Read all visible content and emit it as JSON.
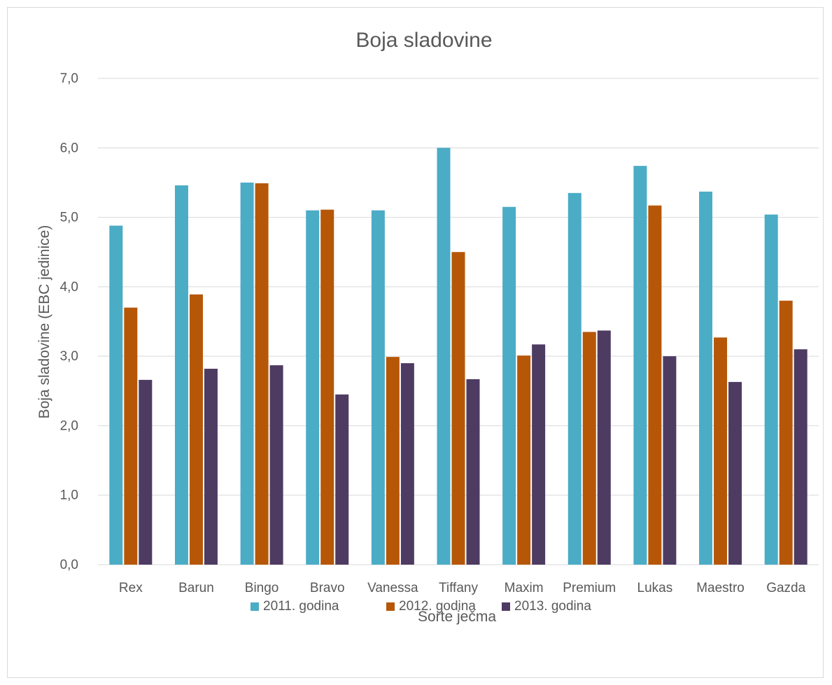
{
  "chart_data": {
    "type": "bar",
    "title": "Boja sladovine",
    "xlabel": "Sorte ječma",
    "ylabel": "Boja sladovine (EBC jedinice)",
    "ylim": [
      0,
      7
    ],
    "yticks": [
      "0,0",
      "1,0",
      "2,0",
      "3,0",
      "4,0",
      "5,0",
      "6,0",
      "7,0"
    ],
    "categories": [
      "Rex",
      "Barun",
      "Bingo",
      "Bravo",
      "Vanessa",
      "Tiffany",
      "Maxim",
      "Premium",
      "Lukas",
      "Maestro",
      "Gazda"
    ],
    "series": [
      {
        "name": "2011. godina",
        "color": "#4bacc6",
        "values": [
          4.88,
          5.46,
          5.5,
          5.1,
          5.1,
          6.0,
          5.15,
          5.35,
          5.74,
          5.37,
          5.04
        ]
      },
      {
        "name": "2012. godina",
        "color": "#b65708",
        "values": [
          3.7,
          3.89,
          5.49,
          5.11,
          2.99,
          4.5,
          3.01,
          3.35,
          5.17,
          3.27,
          3.8
        ]
      },
      {
        "name": "2013. godina",
        "color": "#4e3b62",
        "values": [
          2.66,
          2.82,
          2.87,
          2.45,
          2.9,
          2.67,
          3.17,
          3.37,
          3.0,
          2.63,
          3.1
        ]
      }
    ],
    "grid": true,
    "legend": "bottom"
  }
}
